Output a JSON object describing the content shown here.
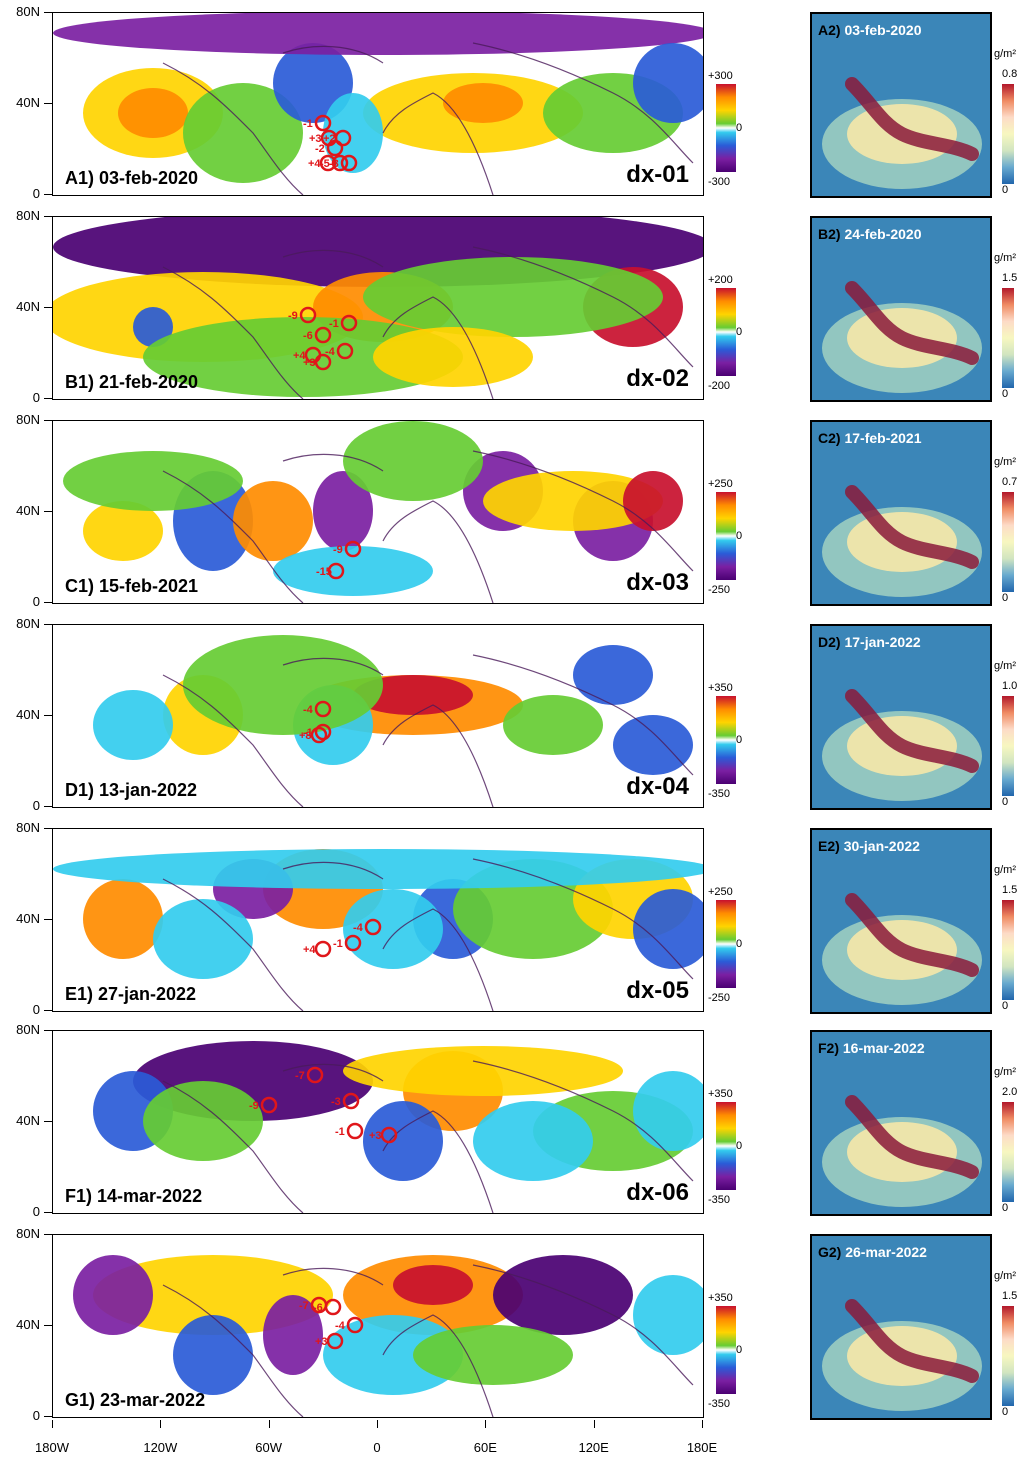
{
  "x_ticks": [
    "180W",
    "120W",
    "60W",
    "0",
    "60E",
    "120E",
    "180E"
  ],
  "y_ticks": [
    "80N",
    "40N",
    "0"
  ],
  "unit": "g/m²",
  "colors": {
    "pos_high": "#c8102e",
    "pos_mid": "#ff8c00",
    "pos_low": "#ffd400",
    "near_zero_pos": "#66cc33",
    "neutral": "#ffffff",
    "neg_low": "#33ccee",
    "neg_mid": "#2a5bd7",
    "neg_high": "#7b1fa2",
    "neg_max": "#4a0072"
  },
  "rows": [
    {
      "id": "A",
      "map_label": "A1) 03-feb-2020",
      "case": "dx-01",
      "cbar_top": "+300",
      "cbar_mid": "0",
      "cbar_bot": "-300",
      "panel_letter": "A2)",
      "panel_date": "03-feb-2020",
      "dbar_top": "0.8",
      "dbar_bot": "0",
      "markers": [
        "-1",
        "+3",
        "+2",
        "-2",
        "+4",
        "-5",
        "-3"
      ]
    },
    {
      "id": "B",
      "map_label": "B1) 21-feb-2020",
      "case": "dx-02",
      "cbar_top": "+200",
      "cbar_mid": "0",
      "cbar_bot": "-200",
      "panel_letter": "B2)",
      "panel_date": "24-feb-2020",
      "dbar_top": "1.5",
      "dbar_bot": "0",
      "markers": [
        "-9",
        "-1",
        "-6",
        "+4",
        "+3",
        "-4"
      ]
    },
    {
      "id": "C",
      "map_label": "C1) 15-feb-2021",
      "case": "dx-03",
      "cbar_top": "+250",
      "cbar_mid": "0",
      "cbar_bot": "-250",
      "panel_letter": "C2)",
      "panel_date": "17-feb-2021",
      "dbar_top": "0.7",
      "dbar_bot": "0",
      "markers": [
        "-9",
        "-15"
      ]
    },
    {
      "id": "D",
      "map_label": "D1) 13-jan-2022",
      "case": "dx-04",
      "cbar_top": "+350",
      "cbar_mid": "0",
      "cbar_bot": "-350",
      "panel_letter": "D2)",
      "panel_date": "17-jan-2022",
      "dbar_top": "1.0",
      "dbar_bot": "0",
      "markers": [
        "-4",
        "-1",
        "+8"
      ]
    },
    {
      "id": "E",
      "map_label": "E1) 27-jan-2022",
      "case": "dx-05",
      "cbar_top": "+250",
      "cbar_mid": "0",
      "cbar_bot": "-250",
      "panel_letter": "E2)",
      "panel_date": "30-jan-2022",
      "dbar_top": "1.5",
      "dbar_bot": "0",
      "markers": [
        "-4",
        "+4",
        "-1"
      ]
    },
    {
      "id": "F",
      "map_label": "F1) 14-mar-2022",
      "case": "dx-06",
      "cbar_top": "+350",
      "cbar_mid": "0",
      "cbar_bot": "-350",
      "panel_letter": "F2)",
      "panel_date": "16-mar-2022",
      "dbar_top": "2.0",
      "dbar_bot": "0",
      "markers": [
        "-7",
        "-9",
        "-3",
        "-1",
        "+3"
      ]
    },
    {
      "id": "G",
      "map_label": "G1) 23-mar-2022",
      "case": "",
      "cbar_top": "+350",
      "cbar_mid": "0",
      "cbar_bot": "-350",
      "panel_letter": "G2)",
      "panel_date": "26-mar-2022",
      "dbar_top": "1.5",
      "dbar_bot": "0",
      "markers": [
        "-7",
        "-6",
        "-4",
        "+3"
      ]
    }
  ]
}
